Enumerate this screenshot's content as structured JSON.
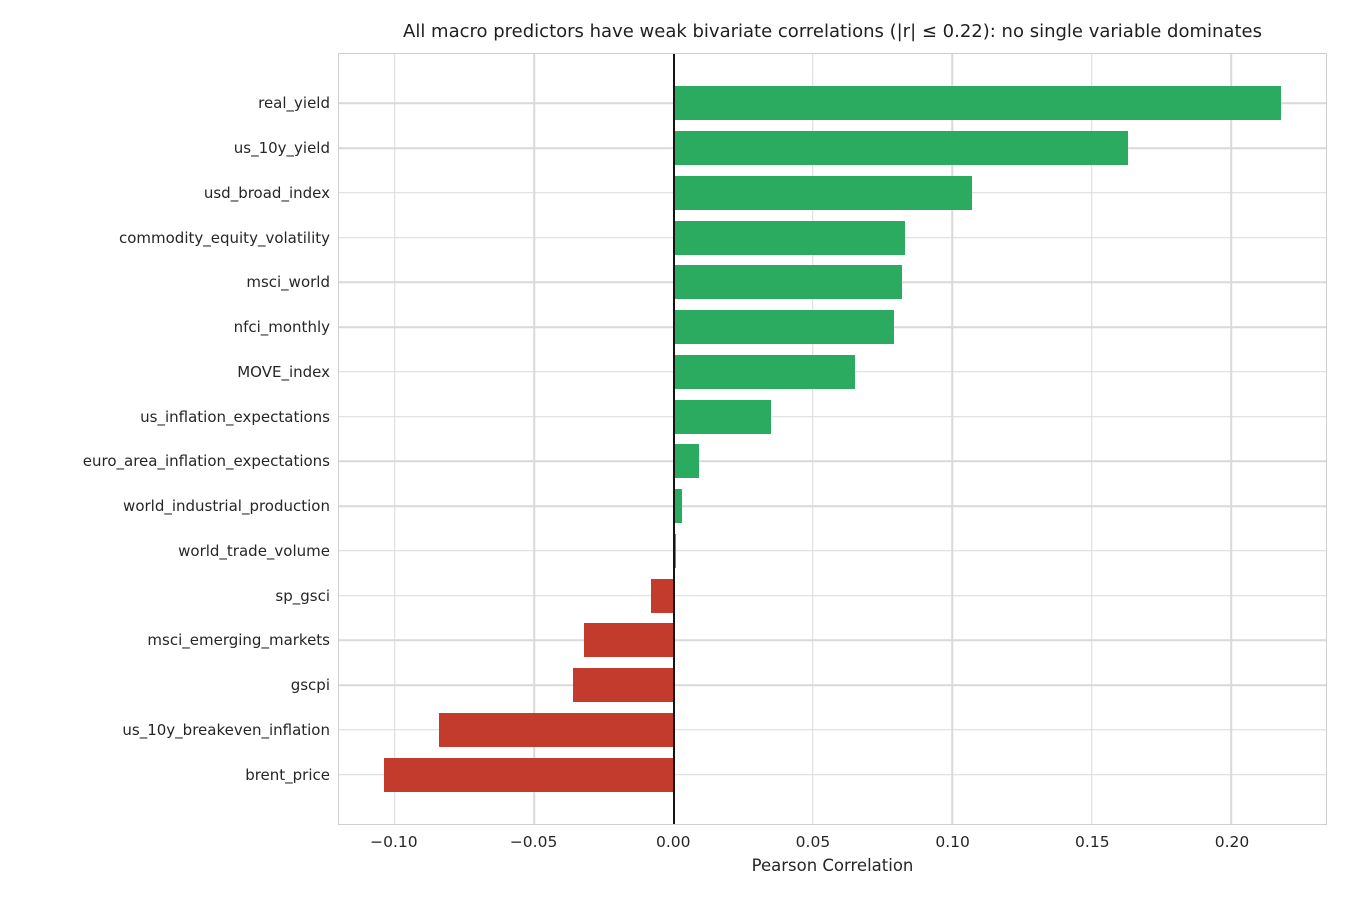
{
  "chart_data": {
    "type": "bar",
    "orientation": "horizontal",
    "title": "All macro predictors have weak bivariate correlations (|r| ≤ 0.22): no single variable dominates",
    "xlabel": "Pearson Correlation",
    "categories": [
      "real_yield",
      "us_10y_yield",
      "usd_broad_index",
      "commodity_equity_volatility",
      "msci_world",
      "nfci_monthly",
      "MOVE_index",
      "us_inflation_expectations",
      "euro_area_inflation_expectations",
      "world_industrial_production",
      "world_trade_volume",
      "sp_gsci",
      "msci_emerging_markets",
      "gscpi",
      "us_10y_breakeven_inflation",
      "brent_price"
    ],
    "values": [
      0.218,
      0.163,
      0.107,
      0.083,
      0.082,
      0.079,
      0.065,
      0.035,
      0.009,
      0.003,
      0.001,
      -0.008,
      -0.032,
      -0.036,
      -0.084,
      -0.104
    ],
    "xlim": [
      -0.12,
      0.234
    ],
    "xticks": [
      -0.1,
      -0.05,
      0.0,
      0.05,
      0.1,
      0.15,
      0.2
    ],
    "xtick_labels": [
      "−0.10",
      "−0.05",
      "0.00",
      "0.05",
      "0.10",
      "0.15",
      "0.20"
    ],
    "positive_color": "#2bab5f",
    "negative_color": "#c33b2c",
    "grid": true,
    "grid_color": "#d9d9d9",
    "zero_line": true,
    "zero_line_color": "#141414",
    "legend": "none"
  }
}
